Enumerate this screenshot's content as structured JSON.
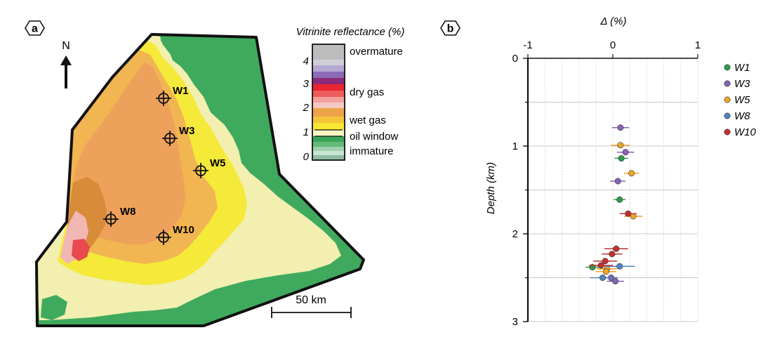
{
  "panel_a": {
    "label": "a",
    "north_label": "N",
    "scale_label": "50 km",
    "legend": {
      "title": "Vitrinite reflectance (%)",
      "ticks": [
        "4",
        "3",
        "2",
        "1",
        "0"
      ],
      "categories": [
        "overmature",
        "dry gas",
        "wet gas",
        "oil window",
        "immature"
      ],
      "category_colors": {
        "overmature": "#bdbdbd",
        "dry_gas": "#e8262f",
        "wet_gas": "#f2b03a",
        "oil_window": "#f4f0a2",
        "immature": "#3faa5e"
      }
    },
    "wells": [
      {
        "id": "W1",
        "label": "W1"
      },
      {
        "id": "W3",
        "label": "W3"
      },
      {
        "id": "W5",
        "label": "W5"
      },
      {
        "id": "W8",
        "label": "W8"
      },
      {
        "id": "W10",
        "label": "W10"
      }
    ]
  },
  "panel_b": {
    "label": "b",
    "chart_data": {
      "type": "scatter",
      "title": "",
      "xlabel": "Δ (%)",
      "ylabel": "Depth (km)",
      "xlim": [
        -1,
        1
      ],
      "ylim": [
        0,
        3
      ],
      "x_ticks": [
        "-1",
        "0",
        "1"
      ],
      "y_ticks": [
        "0",
        "1",
        "2",
        "3"
      ],
      "grid": true,
      "legend_position": "right",
      "series": [
        {
          "name": "W1",
          "color": "#2f9a4a",
          "points": [
            {
              "x": 0.1,
              "y": 1.14,
              "err": 0.08
            },
            {
              "x": 0.08,
              "y": 1.61,
              "err": 0.07
            },
            {
              "x": -0.24,
              "y": 2.38,
              "err": 0.08
            }
          ]
        },
        {
          "name": "W3",
          "color": "#8565b4",
          "points": [
            {
              "x": 0.09,
              "y": 0.79,
              "err": 0.1
            },
            {
              "x": 0.15,
              "y": 1.07,
              "err": 0.1
            },
            {
              "x": 0.06,
              "y": 1.4,
              "err": 0.09
            },
            {
              "x": 0.03,
              "y": 2.54,
              "err": 0.1
            },
            {
              "x": -0.02,
              "y": 2.5,
              "err": 0.08
            }
          ]
        },
        {
          "name": "W5",
          "color": "#eca52b",
          "points": [
            {
              "x": 0.09,
              "y": 0.99,
              "err": 0.11
            },
            {
              "x": 0.22,
              "y": 1.31,
              "err": 0.09
            },
            {
              "x": 0.24,
              "y": 1.8,
              "err": 0.11
            },
            {
              "x": -0.07,
              "y": 2.4,
              "err": 0.12
            },
            {
              "x": -0.08,
              "y": 2.43,
              "err": 0.12
            }
          ]
        },
        {
          "name": "W8",
          "color": "#4f84c1",
          "points": [
            {
              "x": 0.08,
              "y": 2.37,
              "err": 0.18
            },
            {
              "x": -0.12,
              "y": 2.5,
              "err": 0.15
            }
          ]
        },
        {
          "name": "W10",
          "color": "#c1312e",
          "points": [
            {
              "x": 0.18,
              "y": 1.77,
              "err": 0.1
            },
            {
              "x": 0.04,
              "y": 2.17,
              "err": 0.14
            },
            {
              "x": -0.01,
              "y": 2.23,
              "err": 0.12
            },
            {
              "x": -0.09,
              "y": 2.31,
              "err": 0.14
            },
            {
              "x": -0.14,
              "y": 2.36,
              "err": 0.14
            }
          ]
        }
      ]
    }
  }
}
